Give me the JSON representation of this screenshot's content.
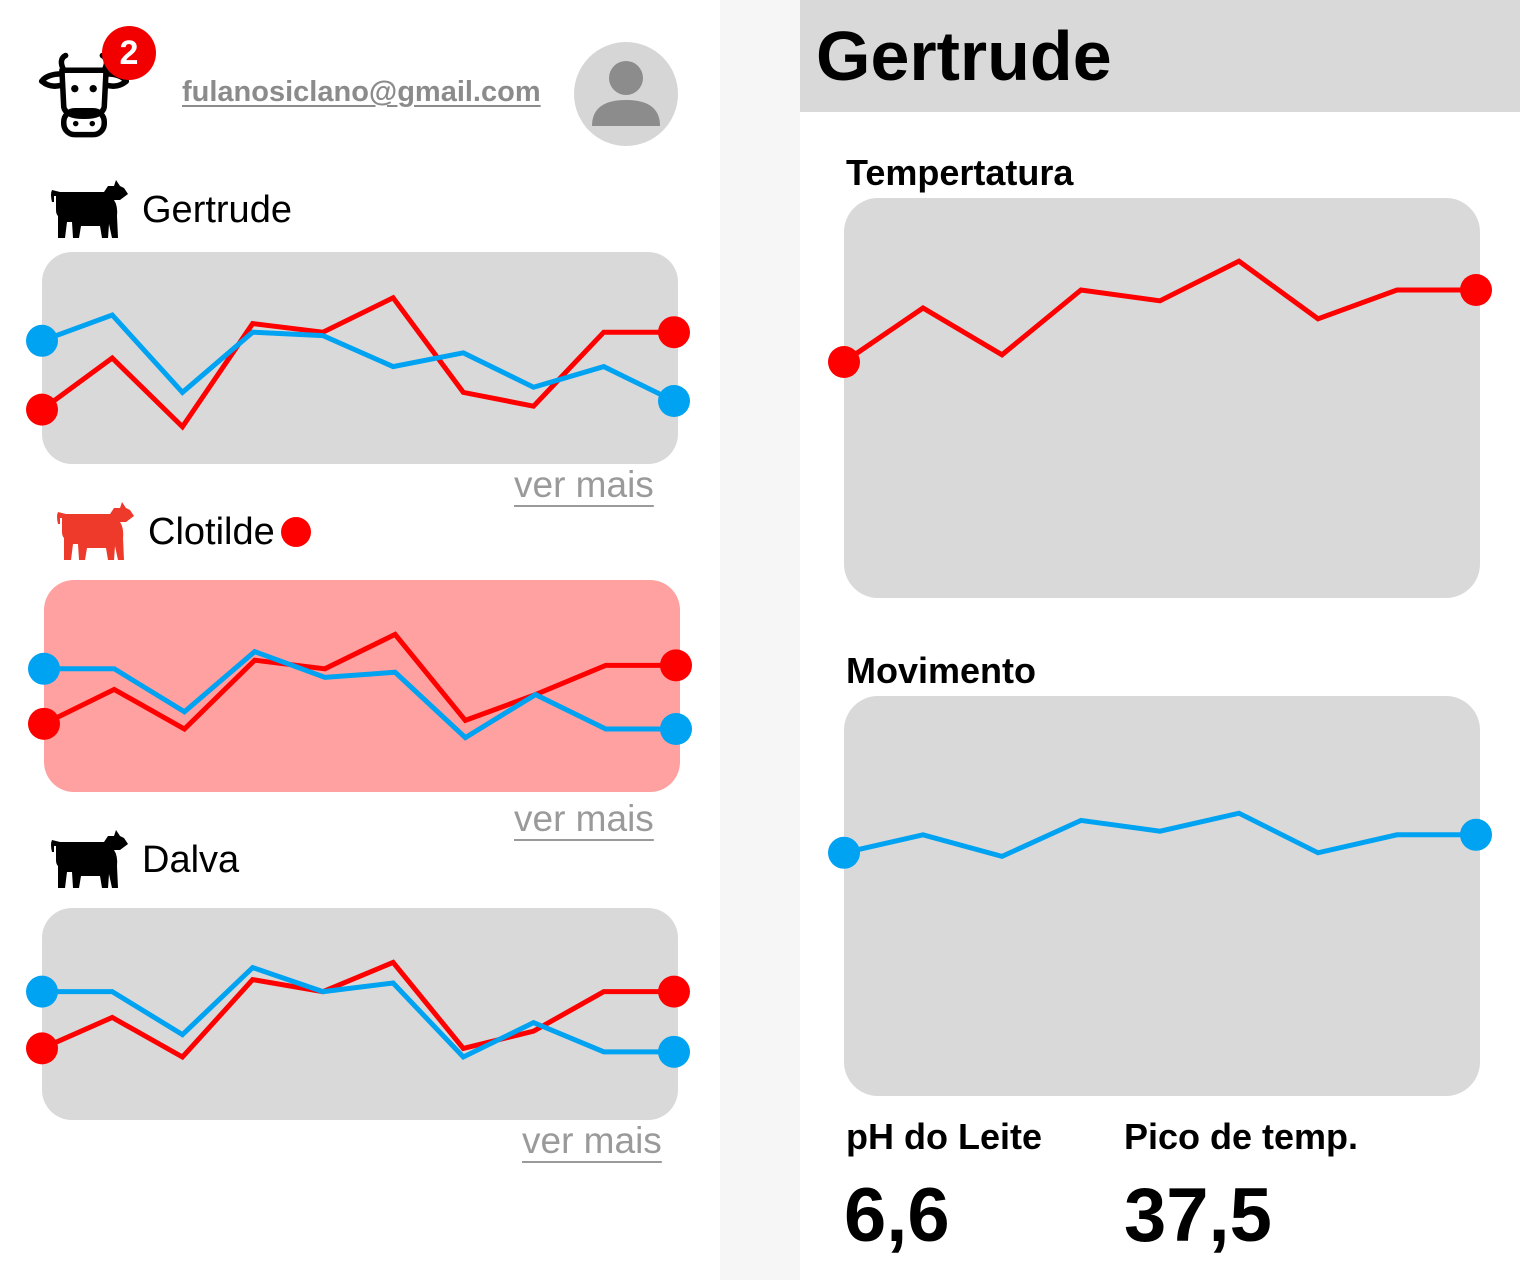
{
  "header": {
    "notification_count": "2",
    "email": "fulanosiclano@gmail.com"
  },
  "colors": {
    "temperature": "#ff0000",
    "movement": "#00a2f2",
    "card": "#d9d9d9",
    "card_alert": "#ffa1a1",
    "alert": "#ff0000"
  },
  "icons": {
    "logo": "cow-face-icon",
    "animal": "cow-icon",
    "user": "user-avatar-icon"
  },
  "animals": [
    {
      "name": "Gertrude",
      "alert": false,
      "link_label": "ver mais",
      "temperature": [
        0.2,
        0.5,
        0.1,
        0.7,
        0.65,
        0.85,
        0.3,
        0.22,
        0.65,
        0.65
      ],
      "movement": [
        0.6,
        0.75,
        0.3,
        0.65,
        0.63,
        0.45,
        0.53,
        0.33,
        0.45,
        0.25
      ]
    },
    {
      "name": "Clotilde",
      "alert": true,
      "link_label": "ver mais",
      "temperature": [
        0.28,
        0.48,
        0.25,
        0.65,
        0.6,
        0.8,
        0.3,
        0.45,
        0.62,
        0.62
      ],
      "movement": [
        0.6,
        0.6,
        0.35,
        0.7,
        0.55,
        0.58,
        0.2,
        0.45,
        0.25,
        0.25
      ]
    },
    {
      "name": "Dalva",
      "alert": false,
      "link_label": "ver mais",
      "temperature": [
        0.3,
        0.48,
        0.25,
        0.7,
        0.63,
        0.8,
        0.3,
        0.4,
        0.63,
        0.63
      ],
      "movement": [
        0.63,
        0.63,
        0.38,
        0.77,
        0.63,
        0.68,
        0.25,
        0.45,
        0.28,
        0.28
      ]
    }
  ],
  "detail": {
    "title": "Gertrude",
    "temperature_chart": {
      "label": "Tempertatura",
      "values": [
        0.6,
        0.75,
        0.62,
        0.8,
        0.77,
        0.88,
        0.72,
        0.8,
        0.8
      ]
    },
    "movement_chart": {
      "label": "Movimento",
      "values": [
        0.62,
        0.67,
        0.61,
        0.71,
        0.68,
        0.73,
        0.62,
        0.67,
        0.67
      ]
    },
    "stats": [
      {
        "label": "pH do Leite",
        "value": "6,6"
      },
      {
        "label": "Pico de temp.",
        "value": "37,5"
      }
    ]
  }
}
